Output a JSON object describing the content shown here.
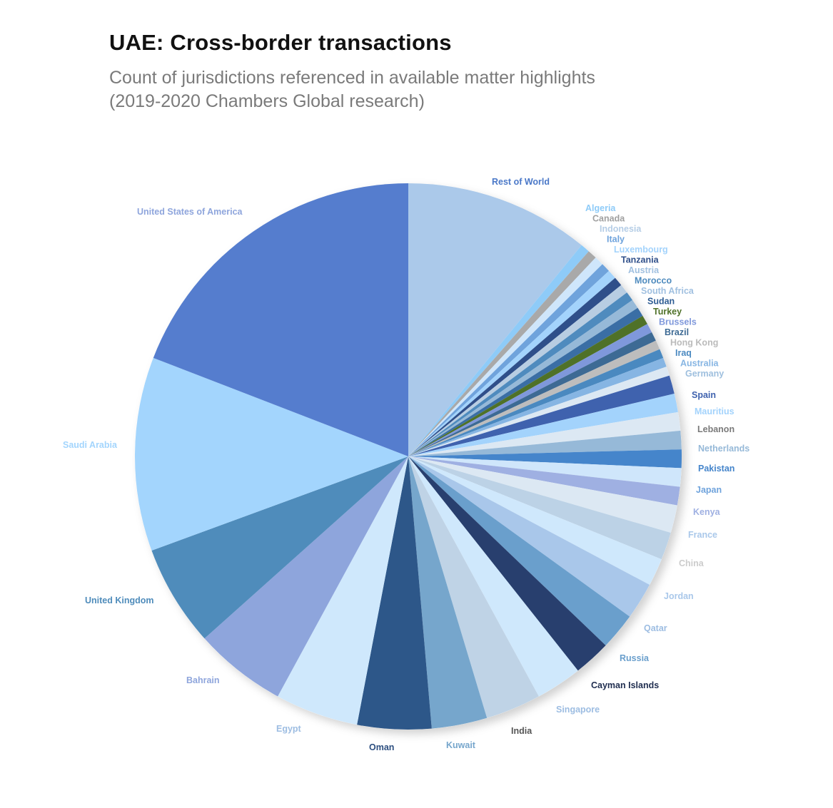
{
  "chart_data": {
    "type": "pie",
    "title": "UAE: Cross-border transactions",
    "subtitle_line1": "Count of jurisdictions referenced in available matter highlights",
    "subtitle_line2": "(2019-2020 Chambers Global research)",
    "start": "12 o'clock, clockwise",
    "slices": [
      {
        "label": "Rest of World",
        "value": 20,
        "color": "#abc9ea",
        "label_color": "#4a78c8"
      },
      {
        "label": "Algeria",
        "value": 1,
        "color": "#8ecbf8",
        "label_color": "#8ecbf8"
      },
      {
        "label": "Canada",
        "value": 1,
        "color": "#a9a9a9",
        "label_color": "#a0a0a0"
      },
      {
        "label": "Indonesia",
        "value": 1,
        "color": "#cfe6fb",
        "label_color": "#b5cde6"
      },
      {
        "label": "Italy",
        "value": 1,
        "color": "#6fa3dc",
        "label_color": "#6fa3dc"
      },
      {
        "label": "Luxembourg",
        "value": 1,
        "color": "#a3d3fc",
        "label_color": "#a3d3fc"
      },
      {
        "label": "Tanzania",
        "value": 1,
        "color": "#2f4f8a",
        "label_color": "#2f4f8a"
      },
      {
        "label": "Austria",
        "value": 1,
        "color": "#b8cde2",
        "label_color": "#a0c0e0"
      },
      {
        "label": "Morocco",
        "value": 1,
        "color": "#4f8bbe",
        "label_color": "#4f8bbe"
      },
      {
        "label": "South Africa",
        "value": 1,
        "color": "#96b9d8",
        "label_color": "#a0c0e0"
      },
      {
        "label": "Sudan",
        "value": 1,
        "color": "#3a6ea5",
        "label_color": "#2f5d94"
      },
      {
        "label": "Turkey",
        "value": 1,
        "color": "#4f7128",
        "label_color": "#4f7128"
      },
      {
        "label": "Brussels",
        "value": 1,
        "color": "#7f98db",
        "label_color": "#7f98db"
      },
      {
        "label": "Brazil",
        "value": 1,
        "color": "#3d6a94",
        "label_color": "#3d6a94"
      },
      {
        "label": "Hong Kong",
        "value": 1,
        "color": "#bdbdbd",
        "label_color": "#bbbbbb"
      },
      {
        "label": "Iraq",
        "value": 1,
        "color": "#4a89c0",
        "label_color": "#4a89c0"
      },
      {
        "label": "Australia",
        "value": 1,
        "color": "#86b5e3",
        "label_color": "#86b5e3"
      },
      {
        "label": "Germany",
        "value": 1,
        "color": "#dce8f3",
        "label_color": "#9ebfde"
      },
      {
        "label": "Spain",
        "value": 2,
        "color": "#3f62ae",
        "label_color": "#3f62ae"
      },
      {
        "label": "Mauritius",
        "value": 2,
        "color": "#a3d3fc",
        "label_color": "#a3d3fc"
      },
      {
        "label": "Lebanon",
        "value": 2,
        "color": "#dce8f3",
        "label_color": "#7a7a7a"
      },
      {
        "label": "Netherlands",
        "value": 2,
        "color": "#96b9d8",
        "label_color": "#96b9d8"
      },
      {
        "label": "Pakistan",
        "value": 2,
        "color": "#4585cb",
        "label_color": "#4585cb"
      },
      {
        "label": "Japan",
        "value": 2,
        "color": "#cfe6fb",
        "label_color": "#6fa3dc"
      },
      {
        "label": "Kenya",
        "value": 2,
        "color": "#9fb0e2",
        "label_color": "#9fb0e2"
      },
      {
        "label": "France",
        "value": 3,
        "color": "#dce8f3",
        "label_color": "#aac8ea"
      },
      {
        "label": "China",
        "value": 3,
        "color": "#bcd2e6",
        "label_color": "#cccccc"
      },
      {
        "label": "Jordan",
        "value": 3,
        "color": "#cfe8fc",
        "label_color": "#aac8ea"
      },
      {
        "label": "Qatar",
        "value": 4,
        "color": "#a9c7ea",
        "label_color": "#9dbde2"
      },
      {
        "label": "Russia",
        "value": 4,
        "color": "#6a9fcc",
        "label_color": "#6a9fcc"
      },
      {
        "label": "Cayman Islands",
        "value": 4,
        "color": "#283f6e",
        "label_color": "#1f2d4f"
      },
      {
        "label": "Singapore",
        "value": 5,
        "color": "#cfe8fc",
        "label_color": "#9dbde2"
      },
      {
        "label": "India",
        "value": 6,
        "color": "#bfd3e6",
        "label_color": "#555555"
      },
      {
        "label": "Kuwait",
        "value": 6,
        "color": "#76a6cc",
        "label_color": "#76a6cc"
      },
      {
        "label": "Oman",
        "value": 8,
        "color": "#2d5789",
        "label_color": "#2d4f80"
      },
      {
        "label": "Egypt",
        "value": 9,
        "color": "#cfe8fc",
        "label_color": "#9dbde2"
      },
      {
        "label": "Bahrain",
        "value": 10,
        "color": "#8ea5dc",
        "label_color": "#8ea5dc"
      },
      {
        "label": "United Kingdom",
        "value": 11,
        "color": "#4f8cbb",
        "label_color": "#4f8cbb"
      },
      {
        "label": "Saudi Arabia",
        "value": 21,
        "color": "#a3d5fd",
        "label_color": "#a3d5fd"
      },
      {
        "label": "United States of America",
        "value": 35,
        "color": "#557dce",
        "label_color": "#8ea5dc"
      }
    ]
  }
}
